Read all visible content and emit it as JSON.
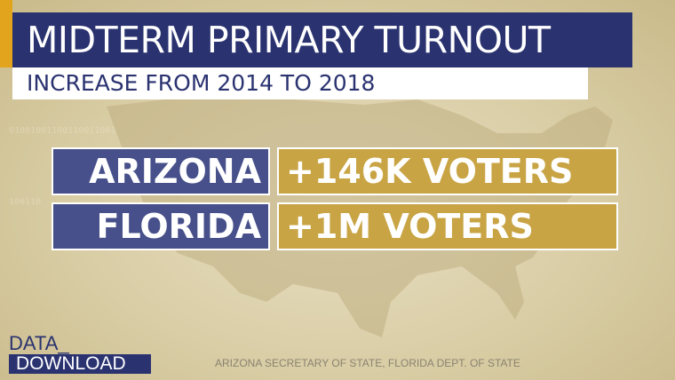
{
  "header": {
    "title": "MIDTERM PRIMARY TURNOUT",
    "subtitle": "INCREASE FROM 2014 TO 2018"
  },
  "rows": [
    {
      "state": "ARIZONA",
      "value": "+146K VOTERS"
    },
    {
      "state": "FLORIDA",
      "value": "+1M VOTERS"
    }
  ],
  "logo": {
    "line1": "DATA_",
    "line2": "DOWNLOAD"
  },
  "source": "ARIZONA SECRETARY OF STATE, FLORIDA DEPT. OF STATE",
  "colors": {
    "navy": "#2a3370",
    "state_bg": "#47508a",
    "gold": "#c8a444",
    "accent": "#e3a41d",
    "background": "#d9cda5"
  }
}
